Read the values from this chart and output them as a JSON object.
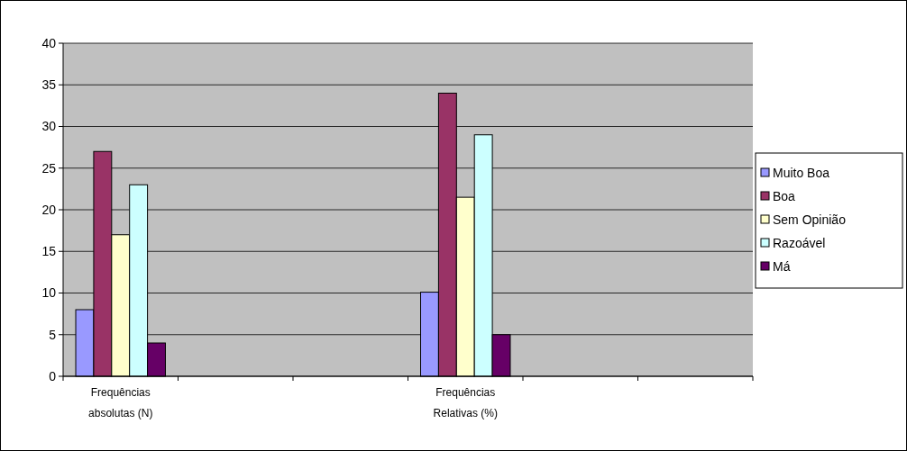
{
  "chart_data": {
    "type": "bar",
    "categories": [
      "Frequências absolutas (N)",
      null,
      null,
      "Frequências Relativas (%)",
      null,
      null
    ],
    "series": [
      {
        "name": "Muito Boa",
        "color": "#9999ff",
        "values": [
          8,
          null,
          null,
          10.1,
          null,
          null
        ]
      },
      {
        "name": "Boa",
        "color": "#993366",
        "values": [
          27,
          null,
          null,
          34,
          null,
          null
        ]
      },
      {
        "name": "Sem Opinião",
        "color": "#ffffcc",
        "values": [
          17,
          null,
          null,
          21.5,
          null,
          null
        ]
      },
      {
        "name": "Razoável",
        "color": "#ccffff",
        "values": [
          23,
          null,
          null,
          29,
          null,
          null
        ]
      },
      {
        "name": "Má",
        "color": "#660066",
        "values": [
          4,
          null,
          null,
          5,
          null,
          null
        ]
      }
    ],
    "ylim": [
      0,
      40
    ],
    "yticks": [
      0,
      5,
      10,
      15,
      20,
      25,
      30,
      35,
      40
    ],
    "grid": "y",
    "legend": "right"
  }
}
